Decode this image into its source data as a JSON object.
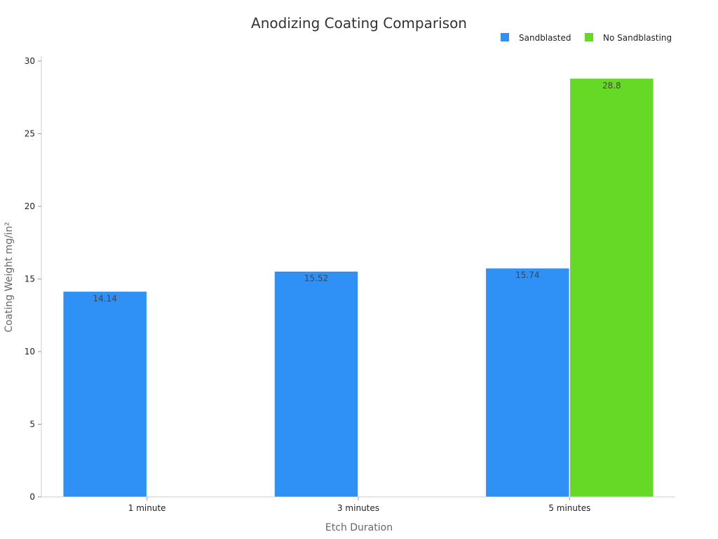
{
  "chart_data": {
    "type": "bar",
    "title": "Anodizing Coating Comparison",
    "xlabel": "Etch Duration",
    "ylabel": "Coating Weight mg/in²",
    "categories": [
      "1 minute",
      "3 minutes",
      "5 minutes"
    ],
    "series": [
      {
        "name": "Sandblasted",
        "color": "#2f91f5",
        "values": [
          14.14,
          15.52,
          15.74
        ]
      },
      {
        "name": "No Sandblasting",
        "color": "#66d926",
        "values": [
          null,
          null,
          28.8
        ]
      }
    ],
    "ylim": [
      0,
      30
    ],
    "yticks": [
      0,
      5,
      10,
      15,
      20,
      25,
      30
    ],
    "grid": false,
    "legend_position": "top-right"
  }
}
